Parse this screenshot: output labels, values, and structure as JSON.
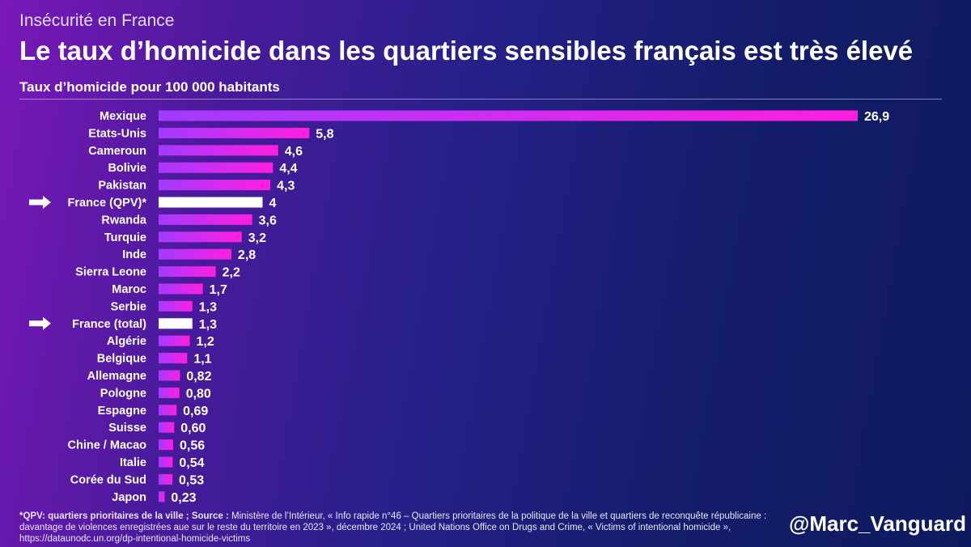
{
  "header": {
    "topic": "Insécurité en France",
    "title": "Le taux d’homicide dans les quartiers sensibles français est très élevé",
    "subtitle": "Taux d’homicide pour 100 000 habitants"
  },
  "colors": {
    "bar_start": "#a23bff",
    "bar_end": "#ff1ee0",
    "highlight": "#ffffff"
  },
  "chart_data": {
    "type": "bar",
    "orientation": "horizontal",
    "title": "Taux d’homicide pour 100 000 habitants",
    "xlabel": "",
    "ylabel": "",
    "xlim": [
      0,
      26.9
    ],
    "categories": [
      "Mexique",
      "Etats-Unis",
      "Cameroun",
      "Bolivie",
      "Pakistan",
      "France (QPV)*",
      "Rwanda",
      "Turquie",
      "Inde",
      "Sierra Leone",
      "Maroc",
      "Serbie",
      "France (total)",
      "Algérie",
      "Belgique",
      "Allemagne",
      "Pologne",
      "Espagne",
      "Suisse",
      "Chine / Macao",
      "Italie",
      "Corée du Sud",
      "Japon"
    ],
    "values": [
      26.9,
      5.8,
      4.6,
      4.4,
      4.3,
      4,
      3.6,
      3.2,
      2.8,
      2.2,
      1.7,
      1.3,
      1.3,
      1.2,
      1.1,
      0.82,
      0.8,
      0.69,
      0.6,
      0.56,
      0.54,
      0.53,
      0.23
    ],
    "labels": [
      "26,9",
      "5,8",
      "4,6",
      "4,4",
      "4,3",
      "4",
      "3,6",
      "3,2",
      "2,8",
      "2,2",
      "1,7",
      "1,3",
      "1,3",
      "1,2",
      "1,1",
      "0,82",
      "0,80",
      "0,69",
      "0,60",
      "0,56",
      "0,54",
      "0,53",
      "0,23"
    ],
    "highlighted": [
      "France (QPV)*",
      "France (total)"
    ]
  },
  "footer": {
    "note_bold": "*QPV: quartiers prioritaires de la ville ; Source :",
    "note_text": " Ministère de l’Intérieur, « Info rapide n°46 – Quartiers prioritaires de la politique de la ville et quartiers de reconquête républicaine : davantage de violences enregistrées aue sur le reste du territoire en 2023 », décembre 2024 ; United Nations Office on Drugs and Crime, « Victims of intentional homicide », https://dataunodc.un.org/dp-intentional-homicide-victims",
    "handle": "@Marc_Vanguard"
  }
}
